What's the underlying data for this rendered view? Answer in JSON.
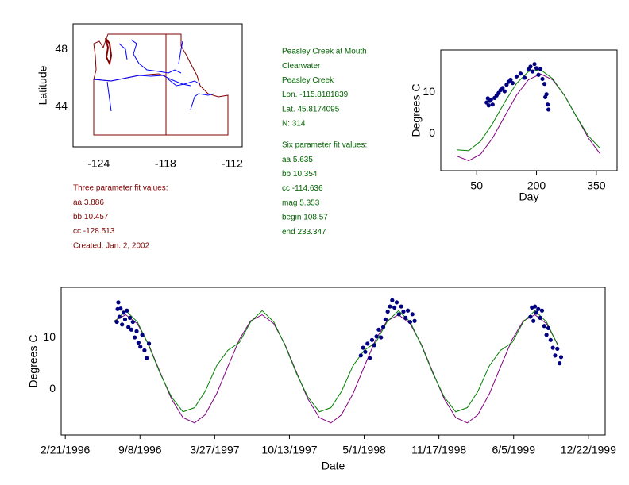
{
  "site_info": [
    "Peasley Creek at Mouth",
    "Clearwater",
    "Peasley Creek",
    "Lon. -115.8181839",
    "Lat. 45.8174095",
    "N: 314"
  ],
  "six_parameter_fit": [
    "Six parameter fit values:",
    "aa 5.635",
    "bb 10.354",
    "cc -114.636",
    "mag 5.353",
    "begin 108.57",
    "end 233.347"
  ],
  "three_parameter_fit": [
    "Three parameter fit values:",
    "aa 3.886",
    "bb 10.457",
    "cc -128.513",
    "Created:   Jan. 2, 2002"
  ],
  "chart_data": [
    {
      "type": "map",
      "ylabel": "Latitude",
      "xlim": [
        -126.3,
        -111.1
      ],
      "ylim": [
        41.2,
        49.8
      ],
      "xticks": [
        -124,
        -118,
        -112
      ],
      "yticks": [
        44,
        48
      ]
    },
    {
      "type": "scatter",
      "xlabel": "Day",
      "ylabel": "Degrees C",
      "xlim": [
        -40,
        402
      ],
      "ylim": [
        -9,
        20.2
      ],
      "xticks": [
        50,
        200,
        350
      ],
      "yticks": [
        0,
        10
      ],
      "series": [
        {
          "mode": "lines",
          "color": "#800080",
          "x": [
            0,
            30,
            60,
            90,
            120,
            150,
            180,
            210,
            240,
            270,
            300,
            330,
            360
          ],
          "values": [
            -5.46,
            -6.59,
            -5.0,
            -1.1,
            4.12,
            9.28,
            13.02,
            14.4,
            13.02,
            9.28,
            4.12,
            -1.1,
            -5.0
          ]
        },
        {
          "mode": "lines",
          "color": "#008000",
          "x": [
            0,
            30,
            60,
            90,
            120,
            150,
            180,
            210,
            240,
            270,
            300,
            330,
            360
          ],
          "values": [
            -3.95,
            -4.17,
            -1.84,
            2.43,
            7.53,
            12.12,
            15.01,
            15.45,
            13.32,
            9.18,
            4.1,
            -0.58,
            -3.66
          ]
        },
        {
          "mode": "markers",
          "color": "#000080",
          "x": [
            75,
            78,
            80,
            83,
            86,
            90,
            95,
            100,
            105,
            110,
            115,
            120,
            125,
            130,
            135,
            140,
            150,
            160,
            170,
            180,
            185,
            190,
            195,
            200,
            205,
            210,
            215,
            220,
            222,
            225,
            228,
            230
          ],
          "values": [
            7.5,
            8.5,
            6.8,
            7.9,
            8.2,
            7.0,
            8.6,
            9.2,
            9.8,
            10.5,
            11.0,
            10.2,
            11.8,
            12.5,
            13.0,
            12.2,
            13.8,
            14.5,
            13.5,
            15.5,
            16.2,
            15.0,
            16.8,
            15.8,
            14.2,
            15.6,
            13.2,
            12.0,
            8.8,
            9.5,
            7.0,
            5.8
          ]
        }
      ]
    },
    {
      "type": "scatter",
      "xlabel": "Date",
      "ylabel": "Degrees C",
      "xlim": [
        "2/10/1996",
        "2/5/2000"
      ],
      "ylim": [
        -8.9,
        19.7
      ],
      "xticks": [
        "2/21/1996",
        "9/8/1996",
        "3/27/1997",
        "10/13/1997",
        "5/1/1998",
        "11/17/1998",
        "6/5/1999",
        "12/22/1999"
      ],
      "yticks": [
        0,
        10
      ],
      "series": [
        {
          "mode": "lines",
          "color": "#800080",
          "x": [
            "7/1/1996",
            "8/1/1996",
            "9/1/1996",
            "10/1/1996",
            "11/1/1996",
            "12/1/1996",
            "1/1/1997",
            "2/1/1997",
            "3/1/1997",
            "4/1/1997",
            "5/1/1997",
            "6/1/1997",
            "7/1/1997",
            "8/1/1997",
            "9/1/1997",
            "10/1/1997",
            "11/1/1997",
            "12/1/1997",
            "1/1/1998",
            "2/1/1998",
            "3/1/1998",
            "4/1/1998",
            "5/1/1998",
            "6/1/1998",
            "7/1/1998",
            "8/1/1998",
            "9/1/1998",
            "10/1/1998",
            "11/1/1998",
            "12/1/1998",
            "1/1/1999",
            "2/1/1999",
            "3/1/1999",
            "4/1/1999",
            "5/1/1999",
            "6/1/1999",
            "7/1/1999",
            "8/1/1999",
            "9/1/1999",
            "10/1/1999"
          ],
          "values": [
            13.2,
            14.39,
            12.66,
            8.65,
            3.22,
            -1.86,
            -5.53,
            -6.57,
            -5.0,
            -0.93,
            4.31,
            9.59,
            13.2,
            14.39,
            12.66,
            8.65,
            3.22,
            -1.86,
            -5.53,
            -6.57,
            -5.0,
            -0.93,
            4.31,
            9.59,
            13.2,
            14.39,
            12.66,
            8.65,
            3.22,
            -1.86,
            -5.53,
            -6.57,
            -5.0,
            -0.93,
            4.31,
            9.59,
            13.2,
            14.39,
            12.66,
            8.65
          ]
        },
        {
          "mode": "lines",
          "color": "#008000",
          "x": [
            "7/1/1996",
            "8/1/1996",
            "9/1/1996",
            "10/1/1996",
            "11/1/1996",
            "12/1/1996",
            "1/1/1997",
            "2/1/1997",
            "3/1/1997",
            "4/1/1997",
            "5/1/1997",
            "6/1/1997",
            "7/1/1997",
            "8/1/1997",
            "9/1/1997",
            "10/1/1997",
            "11/1/1997",
            "12/1/1997",
            "1/1/1998",
            "2/1/1998",
            "3/1/1998",
            "4/1/1998",
            "5/1/1998",
            "6/1/1998",
            "7/1/1998",
            "8/1/1998",
            "9/1/1998",
            "10/1/1998",
            "11/1/1998",
            "12/1/1998",
            "1/1/1999",
            "2/1/1999",
            "3/1/1999",
            "4/1/1999",
            "5/1/1999",
            "6/1/1999",
            "7/1/1999",
            "8/1/1999",
            "9/1/1999",
            "10/1/1999"
          ],
          "values": [
            13.0,
            15.2,
            13.0,
            8.5,
            3.0,
            -1.5,
            -4.4,
            -3.6,
            -0.5,
            4.5,
            7.5,
            9.0,
            13.0,
            15.2,
            13.0,
            8.5,
            3.0,
            -1.5,
            -4.4,
            -3.6,
            -0.5,
            4.5,
            7.5,
            9.0,
            13.0,
            15.2,
            13.0,
            8.5,
            3.0,
            -1.5,
            -4.4,
            -3.6,
            -0.5,
            4.5,
            7.5,
            9.0,
            13.0,
            15.2,
            13.0,
            8.5
          ]
        },
        {
          "mode": "markers",
          "color": "#000080",
          "x": [
            "7/8/1996",
            "7/10/1996",
            "7/12/1996",
            "7/15/1996",
            "7/18/1996",
            "7/22/1996",
            "7/26/1996",
            "7/30/1996",
            "8/4/1996",
            "8/8/1996",
            "8/12/1996",
            "8/16/1996",
            "8/20/1996",
            "8/25/1996",
            "8/30/1996",
            "9/4/1996",
            "9/9/1996",
            "9/14/1996",
            "9/20/1996",
            "9/26/1996",
            "10/2/1996",
            "4/22/1998",
            "4/28/1998",
            "5/4/1998",
            "5/10/1998",
            "5/16/1998",
            "5/22/1998",
            "5/28/1998",
            "6/3/1998",
            "6/9/1998",
            "6/15/1998",
            "6/21/1998",
            "6/27/1998",
            "7/3/1998",
            "7/9/1998",
            "7/15/1998",
            "7/21/1998",
            "7/27/1998",
            "8/2/1998",
            "8/8/1998",
            "8/14/1998",
            "8/20/1998",
            "8/26/1998",
            "9/1/1998",
            "9/7/1998",
            "9/13/1998",
            "7/20/1999",
            "7/24/1999",
            "7/28/1999",
            "8/1/1999",
            "8/5/1999",
            "8/10/1999",
            "8/15/1999",
            "8/20/1999",
            "8/26/1999",
            "9/1/1999",
            "9/6/1999",
            "9/12/1999",
            "9/18/1999",
            "9/24/1999",
            "9/30/1999",
            "10/6/1999",
            "10/10/1999"
          ],
          "values": [
            13.0,
            15.5,
            16.8,
            14.0,
            15.6,
            12.5,
            14.8,
            13.5,
            15.2,
            12.0,
            13.8,
            11.5,
            13.0,
            10.0,
            11.2,
            9.0,
            8.2,
            10.5,
            7.5,
            6.0,
            8.8,
            6.5,
            8.0,
            7.2,
            8.8,
            6.0,
            9.5,
            8.5,
            10.2,
            11.5,
            10.0,
            12.0,
            13.5,
            15.0,
            16.0,
            17.2,
            15.8,
            16.8,
            14.5,
            16.0,
            15.0,
            13.8,
            15.2,
            13.0,
            14.5,
            13.2,
            14.0,
            15.8,
            13.2,
            16.0,
            14.8,
            15.5,
            13.8,
            15.2,
            12.2,
            10.5,
            11.8,
            9.5,
            8.0,
            6.5,
            7.8,
            5.0,
            6.2
          ]
        }
      ]
    }
  ]
}
